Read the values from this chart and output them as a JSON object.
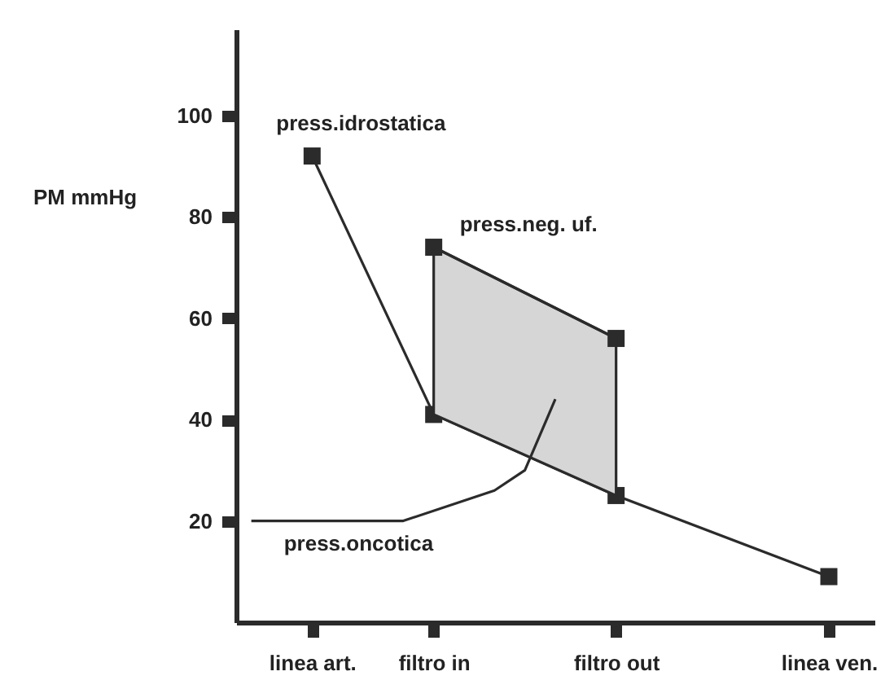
{
  "chart_data": {
    "type": "line",
    "ylabel": "PM\nmmHg",
    "marker": "square",
    "ylim": [
      0,
      117
    ],
    "yticks": [
      20,
      40,
      60,
      80,
      100
    ],
    "categories": [
      null,
      null,
      "linea art.",
      null,
      null,
      null,
      "filtro in",
      null,
      null,
      null,
      null,
      null,
      "filtro out",
      null,
      null,
      null,
      null,
      null,
      null,
      "linea ven.",
      null
    ],
    "series": [
      {
        "name": "press.idrostatica",
        "color": "#2b2b2b",
        "values": [
          null,
          null,
          92,
          null,
          null,
          null,
          41,
          null,
          null,
          null,
          null,
          null,
          25,
          null,
          null,
          null,
          null,
          null,
          null,
          9,
          null
        ]
      },
      {
        "name": "press.neg. uf.",
        "color": "#2b2b2b",
        "values": [
          null,
          null,
          null,
          null,
          null,
          null,
          74,
          null,
          null,
          null,
          null,
          null,
          56,
          null,
          null,
          null,
          null,
          null,
          null,
          null,
          null
        ],
        "lower": [
          null,
          null,
          null,
          null,
          null,
          null,
          41,
          null,
          null,
          null,
          null,
          null,
          25,
          null,
          null,
          null,
          null,
          null,
          null,
          null,
          null
        ],
        "upper": [
          null,
          null,
          null,
          null,
          null,
          null,
          74,
          null,
          null,
          null,
          null,
          null,
          56,
          null,
          null,
          null,
          null,
          null,
          null,
          null,
          null
        ]
      },
      {
        "name": "press.oncotica",
        "color": "#2b2b2b",
        "marker": "none",
        "values": [
          20,
          null,
          null,
          null,
          null,
          20,
          null,
          null,
          26,
          30,
          44,
          null,
          null,
          null,
          null,
          null,
          null,
          null,
          null,
          null,
          null
        ]
      }
    ]
  }
}
